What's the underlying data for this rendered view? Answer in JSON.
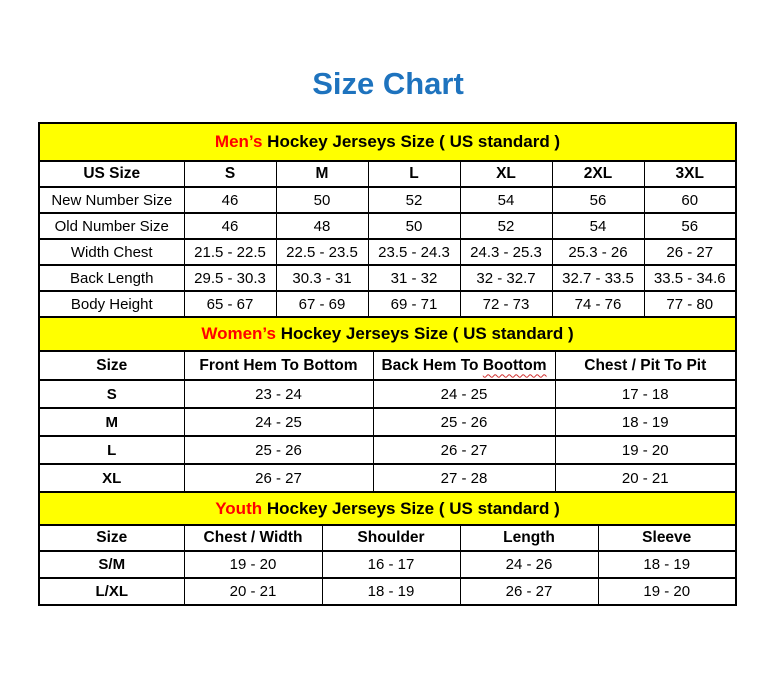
{
  "page": {
    "title": "Size Chart"
  },
  "colors": {
    "title_blue": "#1E73BE",
    "band_yellow": "#FFFF00",
    "accent_red": "#FF0000",
    "grid_black": "#000000"
  },
  "mens": {
    "band": {
      "lead": "Men’s",
      "rest": " Hockey Jerseys Size ( US standard )"
    },
    "headers": [
      "US Size",
      "S",
      "M",
      "L",
      "XL",
      "2XL",
      "3XL"
    ],
    "rows": [
      [
        "New Number Size",
        "46",
        "50",
        "52",
        "54",
        "56",
        "60"
      ],
      [
        "Old Number Size",
        "46",
        "48",
        "50",
        "52",
        "54",
        "56"
      ],
      [
        "Width Chest",
        "21.5 - 22.5",
        "22.5 - 23.5",
        "23.5 - 24.3",
        "24.3 - 25.3",
        "25.3 - 26",
        "26 - 27"
      ],
      [
        "Back Length",
        "29.5 - 30.3",
        "30.3 - 31",
        "31 - 32",
        "32 - 32.7",
        "32.7 - 33.5",
        "33.5 - 34.6"
      ],
      [
        "Body Height",
        "65 - 67",
        "67 - 69",
        "69 - 71",
        "72 - 73",
        "74 - 76",
        "77 - 80"
      ]
    ]
  },
  "womens": {
    "band": {
      "lead": "Women’s",
      "rest": " Hockey Jerseys Size ( US standard )"
    },
    "headers": [
      "Size",
      "Front Hem To Bottom",
      "Back Hem To Boottom",
      "Chest / Pit To Pit"
    ],
    "header3": {
      "prefix": "Back Hem To ",
      "squiggle": "Boottom"
    },
    "rows": [
      [
        "S",
        "23 - 24",
        "24 - 25",
        "17 - 18"
      ],
      [
        "M",
        "24 - 25",
        "25 - 26",
        "18 - 19"
      ],
      [
        "L",
        "25 - 26",
        "26 - 27",
        "19 - 20"
      ],
      [
        "XL",
        "26 - 27",
        "27 - 28",
        "20 - 21"
      ]
    ]
  },
  "youth": {
    "band": {
      "lead": "Youth",
      "rest": " Hockey Jerseys Size ( US standard )"
    },
    "headers": [
      "Size",
      "Chest / Width",
      "Shoulder",
      "Length",
      "Sleeve"
    ],
    "rows": [
      [
        "S/M",
        "19 - 20",
        "16 - 17",
        "24 - 26",
        "18 - 19"
      ],
      [
        "L/XL",
        "20 - 21",
        "18 - 19",
        "26 - 27",
        "19 - 20"
      ]
    ]
  }
}
